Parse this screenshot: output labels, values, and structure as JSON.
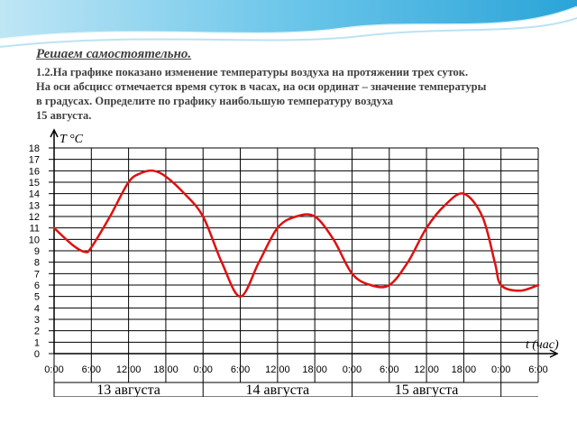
{
  "slide": {
    "title": "Решаем самостоятельно.",
    "task_lines": [
      "1.2.На графике показано изменение температуры воздуха на протяжении трех суток.",
      "На оси абсцисс отмечается время суток в часах, на оси ординат – значение температуры",
      "в градусах. Определите по графику наибольшую температуру воздуха",
      "15 августа."
    ]
  },
  "colors": {
    "line": "#dd1111",
    "grid": "#000000",
    "header_wave": "#4cb8e0",
    "text": "#404040"
  },
  "chart_data": {
    "type": "line",
    "ylabel": "T °C",
    "xlabel": "t (час)",
    "ylim": [
      0,
      18
    ],
    "yticks": [
      0,
      1,
      2,
      3,
      4,
      5,
      6,
      7,
      8,
      9,
      10,
      11,
      12,
      13,
      14,
      15,
      16,
      17,
      18
    ],
    "x_unit": "hours since 13 августа 0:00",
    "xlim": [
      0,
      78
    ],
    "xtick_labels": [
      "0:00",
      "6:00",
      "12:00",
      "18:00",
      "0:00",
      "6:00",
      "12:00",
      "18:00",
      "0:00",
      "6:00",
      "12:00",
      "18:00",
      "0:00",
      "6:00"
    ],
    "day_labels": [
      "13 августа",
      "14 августа",
      "15 августа"
    ],
    "grid": true,
    "series": [
      {
        "x": [
          0,
          3,
          5,
          6,
          9,
          12,
          14,
          16,
          18,
          21,
          24,
          27,
          30,
          33,
          36,
          39,
          42,
          45,
          48,
          51,
          54,
          57,
          60,
          63,
          66,
          69,
          71,
          72,
          75,
          78
        ],
        "y": [
          11,
          9.5,
          8.9,
          9.3,
          12,
          15,
          15.8,
          16,
          15.5,
          14,
          12,
          8,
          5,
          8,
          11,
          12,
          12,
          10,
          7,
          6,
          6,
          8,
          11,
          13,
          14,
          12,
          8,
          6,
          5.5,
          6
        ]
      }
    ]
  }
}
